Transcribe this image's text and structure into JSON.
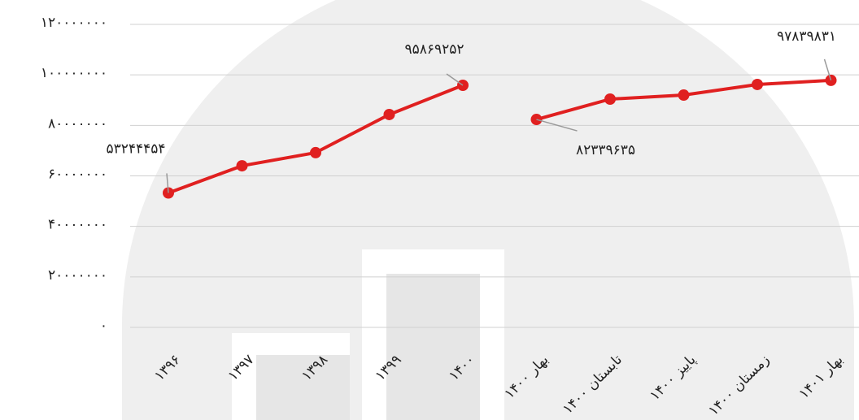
{
  "chart_data": {
    "type": "line",
    "categories": [
      "۱۳۹۶",
      "۱۳۹۷",
      "۱۳۹۸",
      "۱۳۹۹",
      "۱۴۰۰",
      "بهار ۱۴۰۰",
      "تابستان ۱۴۰۰",
      "پاییز ۱۴۰۰",
      "زمستان ۱۴۰۰",
      "بهار ۱۴۰۱"
    ],
    "series": [
      {
        "color": "#e02020",
        "values": [
          53244454,
          64000000,
          69200000,
          84300000,
          95869252,
          null,
          null,
          null,
          null,
          null
        ],
        "value_labels": [
          "۵۳۲۴۴۴۵۴",
          null,
          null,
          null,
          "۹۵۸۶۹۲۵۲",
          null,
          null,
          null,
          null,
          null
        ]
      },
      {
        "color": "#e02020",
        "values": [
          null,
          null,
          null,
          null,
          null,
          82339635,
          90400000,
          92000000,
          96200000,
          97839831
        ],
        "value_labels": [
          null,
          null,
          null,
          null,
          null,
          "۸۲۳۳۹۶۳۵",
          null,
          null,
          null,
          "۹۷۸۳۹۸۳۱"
        ]
      }
    ],
    "ylim": [
      0,
      120000000
    ],
    "yticks": [
      {
        "value": 0,
        "label": "۰"
      },
      {
        "value": 20000000,
        "label": "۲۰۰۰۰۰۰۰"
      },
      {
        "value": 40000000,
        "label": "۴۰۰۰۰۰۰۰"
      },
      {
        "value": 60000000,
        "label": "۶۰۰۰۰۰۰۰"
      },
      {
        "value": 80000000,
        "label": "۸۰۰۰۰۰۰۰"
      },
      {
        "value": 100000000,
        "label": "۱۰۰۰۰۰۰۰۰"
      },
      {
        "value": 120000000,
        "label": "۱۲۰۰۰۰۰۰۰"
      }
    ],
    "grid": true
  }
}
